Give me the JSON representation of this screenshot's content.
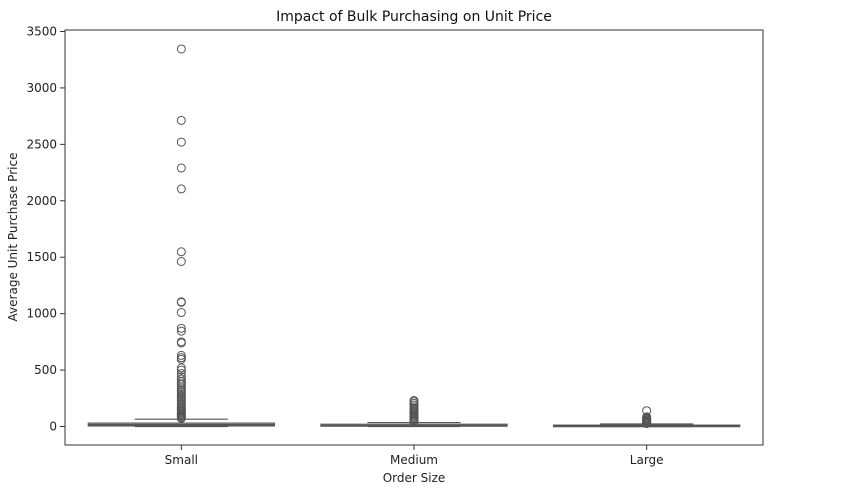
{
  "chart_data": {
    "type": "box",
    "title": "Impact of Bulk Purchasing on Unit Price",
    "xlabel": "Order Size",
    "ylabel": "Average Unit Purchase Price",
    "ylim": [
      -170,
      3550
    ],
    "yticks": [
      0,
      500,
      1000,
      1500,
      2000,
      2500,
      3000,
      3500
    ],
    "grid": false,
    "box_color": "#d3d3d3",
    "edge_color": "#555555",
    "categories": [
      "Small",
      "Medium",
      "Large"
    ],
    "boxes": [
      {
        "category": "Small",
        "q1": 5,
        "median": 15,
        "q3": 30,
        "whisker_low": 0,
        "whisker_high": 65,
        "outliers": [
          3345,
          2712,
          2520,
          2290,
          2105,
          1548,
          1462,
          1105,
          1100,
          1010,
          870,
          845,
          750,
          740,
          630,
          610,
          595,
          520,
          500,
          470,
          440,
          420,
          400,
          385,
          370,
          350,
          335,
          320,
          305,
          290,
          275,
          260,
          245,
          230,
          215,
          200,
          185,
          170,
          160,
          150,
          140,
          130,
          120,
          110,
          100,
          90,
          80,
          72
        ]
      },
      {
        "category": "Medium",
        "q1": 3,
        "median": 8,
        "q3": 20,
        "whisker_low": 0,
        "whisker_high": 35,
        "outliers": [
          230,
          220,
          205,
          190,
          175,
          160,
          150,
          140,
          130,
          120,
          110,
          100,
          90,
          80,
          70,
          60,
          50,
          42
        ]
      },
      {
        "category": "Large",
        "q1": 2,
        "median": 5,
        "q3": 12,
        "whisker_low": 0,
        "whisker_high": 22,
        "outliers": [
          140,
          85,
          78,
          70,
          62,
          55,
          48,
          42,
          36,
          30,
          26
        ]
      }
    ]
  }
}
